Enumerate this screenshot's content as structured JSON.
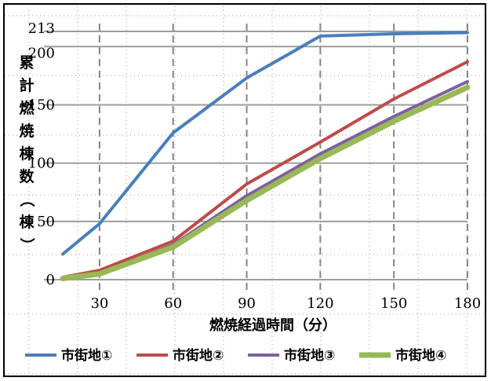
{
  "chart_data": {
    "type": "line",
    "ylabel": "累計燃焼棟数（棟）",
    "xlabel": "燃焼経過時間（分）",
    "x_ticks": [
      "30",
      "60",
      "90",
      "120",
      "150",
      "180"
    ],
    "y_ticks": [
      "0",
      "50",
      "100",
      "150",
      "200",
      "213"
    ],
    "xlim": [
      15,
      180
    ],
    "ylim": [
      0,
      213
    ],
    "grid": true,
    "legend_position": "bottom",
    "x": [
      15,
      30,
      60,
      90,
      120,
      150,
      180
    ],
    "series": [
      {
        "name": "市街地①",
        "color": "#4a7ebb",
        "values": [
          22,
          48,
          126,
          173,
          209,
          211,
          212
        ]
      },
      {
        "name": "市街地②",
        "color": "#be4b48",
        "values": [
          2,
          8,
          33,
          82,
          118,
          155,
          187
        ]
      },
      {
        "name": "市街地③",
        "color": "#7d60a0",
        "values": [
          1,
          5,
          30,
          72,
          108,
          140,
          170
        ]
      },
      {
        "name": "市街地④",
        "color": "#98b954",
        "values": [
          1,
          5,
          28,
          68,
          104,
          136,
          165
        ]
      }
    ]
  }
}
